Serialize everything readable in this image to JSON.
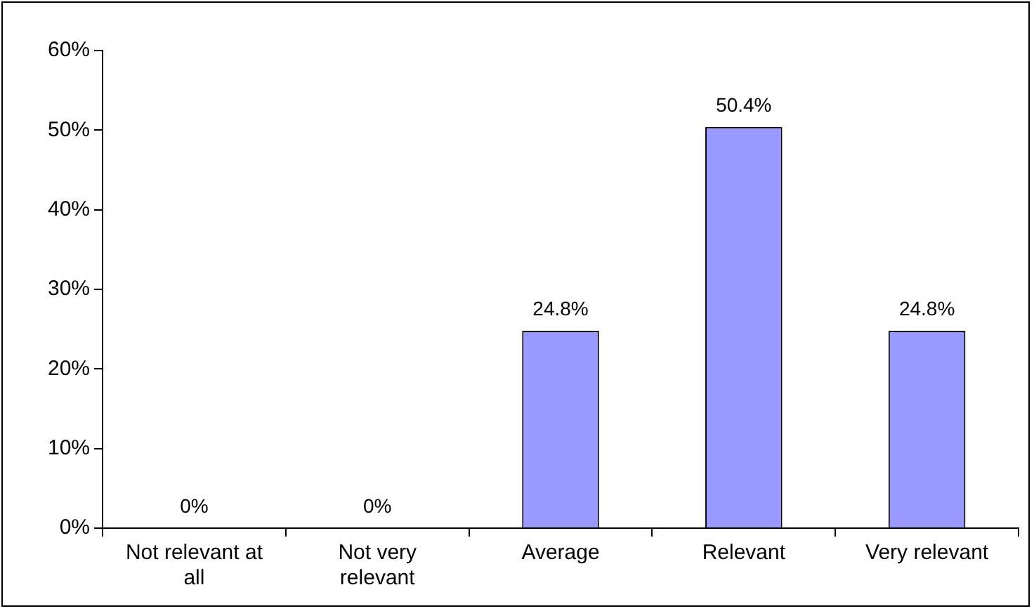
{
  "chart_data": {
    "type": "bar",
    "categories": [
      "Not relevant at all",
      "Not very relevant",
      "Average",
      "Relevant",
      "Very relevant"
    ],
    "values": [
      0,
      0,
      24.8,
      50.4,
      24.8
    ],
    "value_labels": [
      "0%",
      "0%",
      "24.8%",
      "50.4%",
      "24.8%"
    ],
    "color": "#9999ff",
    "ylim": [
      0,
      60
    ],
    "yticks": [
      {
        "value": 0,
        "label": "0%"
      },
      {
        "value": 10,
        "label": "10%"
      },
      {
        "value": 20,
        "label": "20%"
      },
      {
        "value": 30,
        "label": "30%"
      },
      {
        "value": 40,
        "label": "40%"
      },
      {
        "value": 50,
        "label": "50%"
      },
      {
        "value": 60,
        "label": "60%"
      }
    ],
    "grid": false,
    "legend": false
  }
}
